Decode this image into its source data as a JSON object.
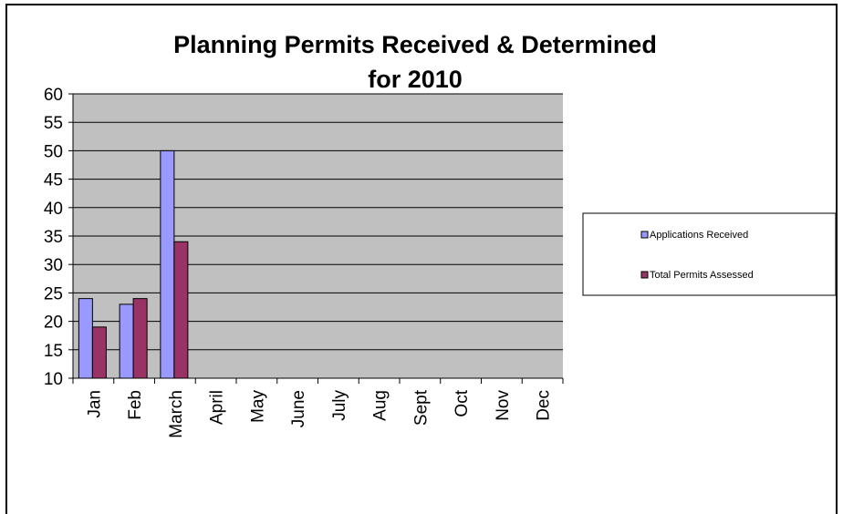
{
  "chart_data": {
    "type": "bar",
    "title_lines": [
      "Planning Permits Received & Determined",
      "for 2010"
    ],
    "xlabel": "",
    "ylabel": "",
    "categories": [
      "Jan",
      "Feb",
      "March",
      "April",
      "May",
      "June",
      "July",
      "Aug",
      "Sept",
      "Oct",
      "Nov",
      "Dec"
    ],
    "series": [
      {
        "name": "Applications Received",
        "values": [
          24,
          23,
          50,
          null,
          null,
          null,
          null,
          null,
          null,
          null,
          null,
          null
        ],
        "color": "#9999ff"
      },
      {
        "name": "Total Permits Assessed",
        "values": [
          19,
          24,
          34,
          null,
          null,
          null,
          null,
          null,
          null,
          null,
          null,
          null
        ],
        "color": "#993366"
      }
    ],
    "ylim": [
      10,
      60
    ],
    "yticks": [
      "10",
      "15",
      "20",
      "25",
      "30",
      "35",
      "40",
      "45",
      "50",
      "55",
      "60"
    ],
    "grid": true,
    "legend_position": "right",
    "plot_background": "#c0c0c0"
  }
}
